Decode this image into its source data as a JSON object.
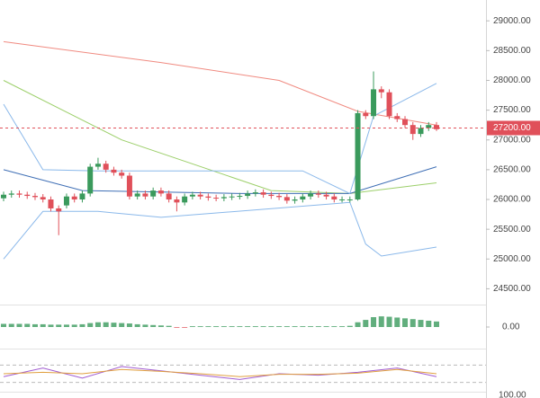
{
  "chart_data": {
    "type": "candlestick",
    "up_color": "#3a9a5c",
    "down_color": "#e0505a",
    "open": [
      26020,
      26080,
      26100,
      26080,
      26060,
      26040,
      26000,
      25850,
      25900,
      26050,
      26000,
      26100,
      26550,
      26600,
      26500,
      26450,
      26400,
      26050,
      26100,
      26050,
      26150,
      26100,
      26000,
      25950,
      26050,
      26080,
      26050,
      26030,
      26020,
      26040,
      26050,
      26060,
      26100,
      26120,
      26080,
      26060,
      26040,
      25980,
      26000,
      26050,
      26100,
      26080,
      26050,
      26000,
      26000,
      26000,
      27450,
      27400,
      27850,
      27800,
      27400,
      27350,
      27250,
      27100,
      27200,
      27250
    ],
    "high": [
      26130,
      26150,
      26150,
      26130,
      26110,
      26090,
      26050,
      25900,
      26100,
      26100,
      26150,
      26600,
      26700,
      26650,
      26550,
      26500,
      26450,
      26150,
      26150,
      26200,
      26200,
      26150,
      26050,
      26100,
      26130,
      26130,
      26100,
      26080,
      26090,
      26100,
      26110,
      26150,
      26170,
      26170,
      26130,
      26110,
      26090,
      26050,
      26100,
      26150,
      26150,
      26130,
      26100,
      26050,
      26050,
      27500,
      27500,
      28150,
      27900,
      27850,
      27450,
      27400,
      27300,
      27250,
      27300,
      27300
    ],
    "low": [
      25970,
      26030,
      26030,
      26010,
      25990,
      25950,
      25800,
      25400,
      25850,
      25950,
      25950,
      26050,
      26500,
      26450,
      26400,
      26350,
      26000,
      26000,
      26000,
      26000,
      26050,
      25950,
      25800,
      25900,
      26000,
      26000,
      25980,
      25970,
      25970,
      25990,
      26000,
      26010,
      26050,
      26030,
      26010,
      25990,
      25930,
      25930,
      25950,
      26000,
      26030,
      26000,
      25950,
      25950,
      25950,
      25980,
      27350,
      27350,
      27700,
      27350,
      27300,
      27200,
      27000,
      27050,
      27150,
      27150
    ],
    "close": [
      26080,
      26100,
      26080,
      26060,
      26040,
      26000,
      25850,
      25800,
      26050,
      26000,
      26100,
      26550,
      26600,
      26500,
      26450,
      26400,
      26050,
      26100,
      26050,
      26150,
      26100,
      26000,
      25950,
      26050,
      26080,
      26050,
      26030,
      26020,
      26040,
      26050,
      26060,
      26100,
      26120,
      26080,
      26060,
      26040,
      25980,
      26000,
      26050,
      26100,
      26080,
      26050,
      26000,
      26000,
      26000,
      27450,
      27400,
      27850,
      27800,
      27400,
      27350,
      27250,
      27100,
      27200,
      27250,
      27180
    ],
    "ylim": [
      24250,
      29350
    ],
    "yticks": [
      {
        "value": 24500,
        "label": "24500.00"
      },
      {
        "value": 25000,
        "label": "25000.00"
      },
      {
        "value": 25500,
        "label": "25500.00"
      },
      {
        "value": 26000,
        "label": "26000.00"
      },
      {
        "value": 26500,
        "label": "26500.00"
      },
      {
        "value": 27000,
        "label": "27000.00"
      },
      {
        "value": 27500,
        "label": "27500.00"
      },
      {
        "value": 28000,
        "label": "28000.00"
      },
      {
        "value": 28500,
        "label": "28500.00"
      },
      {
        "value": 29000,
        "label": "29000.00"
      }
    ],
    "price_marker": {
      "value": 27200,
      "label": "27200.00",
      "color": "#e0505a"
    },
    "overlays": [
      {
        "color": "#f08a80",
        "x": [
          0,
          20,
          35,
          45,
          55
        ],
        "values": [
          28650,
          28300,
          28000,
          27480,
          27250
        ]
      },
      {
        "color": "#9ccf6a",
        "x": [
          0,
          15,
          34,
          44,
          55
        ],
        "values": [
          28000,
          27000,
          26150,
          26100,
          26280
        ]
      },
      {
        "color": "#3f6fb5",
        "x": [
          0,
          10,
          30,
          44,
          55
        ],
        "values": [
          26500,
          26150,
          26100,
          26100,
          26550
        ]
      },
      {
        "color": "#8ab8ea",
        "x": [
          0,
          5,
          12,
          38,
          44,
          47,
          55
        ],
        "values": [
          27600,
          26500,
          26480,
          26480,
          26100,
          27400,
          27950
        ]
      },
      {
        "color": "#8ab8ea",
        "x": [
          0,
          5,
          12,
          20,
          44,
          46,
          48,
          55
        ],
        "values": [
          25000,
          25800,
          25800,
          25700,
          25950,
          25250,
          25050,
          25200
        ]
      }
    ],
    "macd": {
      "ylim": [
        -50,
        50
      ],
      "yticks": [
        {
          "value": 0,
          "label": "0.00"
        }
      ],
      "color": "#3a9a5c",
      "negative_color": "#e0505a",
      "values": [
        8,
        8,
        8,
        8,
        7,
        7,
        6,
        6,
        6,
        6,
        7,
        10,
        12,
        12,
        11,
        10,
        9,
        7,
        6,
        5,
        4,
        3,
        -2,
        -2,
        2,
        2,
        2,
        2,
        2,
        2,
        2,
        2,
        2,
        2,
        2,
        2,
        2,
        2,
        2,
        2,
        2,
        2,
        2,
        2,
        3,
        12,
        18,
        25,
        27,
        26,
        24,
        22,
        20,
        18,
        16,
        14
      ]
    },
    "oscillator": {
      "ylim": [
        0,
        100
      ],
      "levels": [
        20,
        80
      ],
      "series": [
        {
          "color": "#a05bd0",
          "x": [
            0,
            5,
            10,
            15,
            20,
            25,
            30,
            35,
            40,
            45,
            50,
            55
          ],
          "values": [
            40,
            70,
            35,
            75,
            60,
            45,
            30,
            50,
            45,
            55,
            70,
            40
          ]
        },
        {
          "color": "#e0a040",
          "x": [
            0,
            5,
            10,
            15,
            20,
            25,
            30,
            35,
            40,
            45,
            50,
            55
          ],
          "values": [
            50,
            55,
            50,
            65,
            58,
            50,
            40,
            48,
            48,
            52,
            65,
            50
          ]
        }
      ]
    },
    "bottom_panel": {
      "ylim": [
        0,
        100
      ],
      "yticks": [
        {
          "value": 100,
          "label": "100.00"
        }
      ]
    }
  }
}
